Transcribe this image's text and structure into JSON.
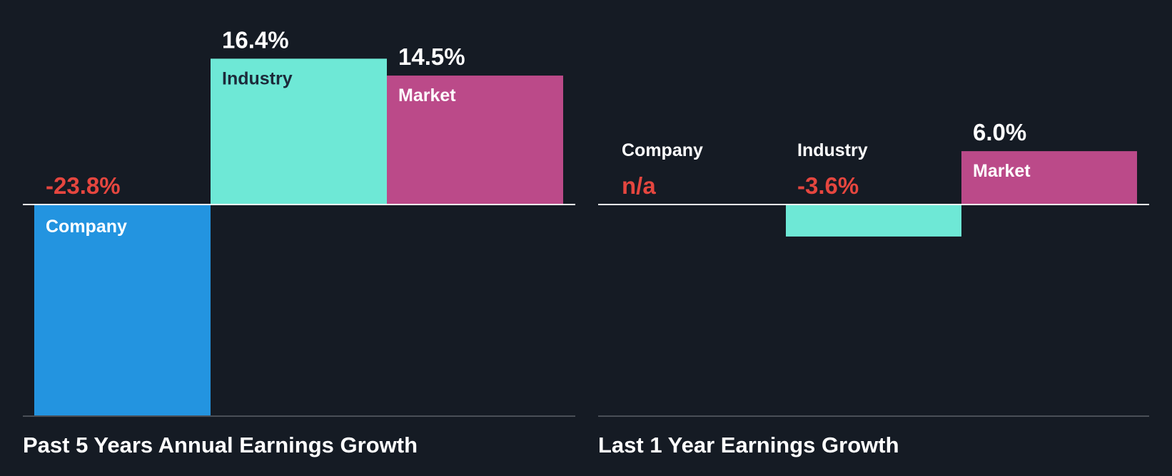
{
  "colors": {
    "background": "#151b24",
    "company": "#2394e0",
    "industry": "#6ee8d6",
    "market": "#bb4a89",
    "negative_text": "#e5463f",
    "positive_text": "#ffffff",
    "label_dark": "#1c2a3a",
    "label_light": "#ffffff",
    "zero_line": "#ffffff",
    "bottom_line": "#4a4f57"
  },
  "chart_data": [
    {
      "type": "bar",
      "title": "Past 5 Years Annual Earnings Growth",
      "categories": [
        "Company",
        "Industry",
        "Market"
      ],
      "values": [
        -23.8,
        16.4,
        14.5
      ],
      "value_labels": [
        "-23.8%",
        "16.4%",
        "14.5%"
      ],
      "ylim": [
        -23.8,
        16.4
      ]
    },
    {
      "type": "bar",
      "title": "Last 1 Year Earnings Growth",
      "categories": [
        "Company",
        "Industry",
        "Market"
      ],
      "values": [
        null,
        -3.6,
        6.0
      ],
      "value_labels": [
        "n/a",
        "-3.6%",
        "6.0%"
      ],
      "ylim": [
        -23.8,
        16.4
      ]
    }
  ]
}
